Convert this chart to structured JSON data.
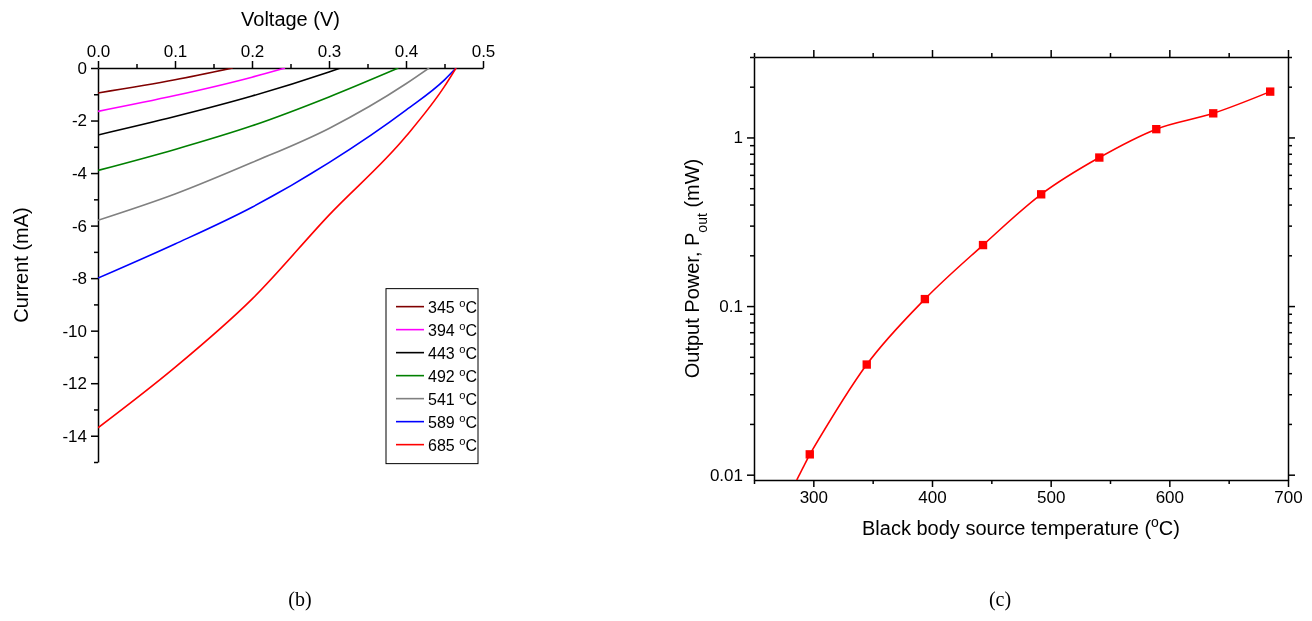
{
  "chart_data": [
    {
      "type": "line",
      "xlabel": "Voltage (V)",
      "ylabel": "Current (mA)",
      "annotations": [
        "(b)"
      ],
      "xlim": [
        0,
        0.5
      ],
      "xticks": [
        {
          "value": 0,
          "label": "0.0"
        },
        {
          "value": 0.05,
          "label": null
        },
        0.1,
        {
          "value": 0.15,
          "label": null
        },
        0.2,
        {
          "value": 0.25,
          "label": null
        },
        0.3,
        {
          "value": 0.35,
          "label": null
        },
        0.4,
        {
          "value": 0.45,
          "label": null
        },
        0.5
      ],
      "ylim": [
        -15,
        0
      ],
      "yticks": [
        0,
        {
          "value": -1,
          "label": null
        },
        -2,
        {
          "value": -3,
          "label": null
        },
        -4,
        {
          "value": -5,
          "label": null
        },
        -6,
        {
          "value": -7,
          "label": null
        },
        -8,
        {
          "value": -9,
          "label": null
        },
        -10,
        {
          "value": -11,
          "label": null
        },
        -12,
        {
          "value": -13,
          "label": null
        },
        -14,
        {
          "value": -15,
          "label": null
        }
      ],
      "legend": "right",
      "grid": false,
      "line_style": "solid",
      "series": [
        {
          "name": "345 $^{o}$C",
          "color": "#800000",
          "x": [
            0,
            0.1,
            0.175
          ],
          "values": [
            -0.95,
            -0.45,
            0
          ]
        },
        {
          "name": "394 $^{o}$C",
          "color": "#ff00ff",
          "x": [
            0,
            0.1,
            0.2,
            0.243
          ],
          "values": [
            -1.65,
            -1.05,
            -0.35,
            0
          ]
        },
        {
          "name": "443 $^{o}$C",
          "color": "#000000",
          "x": [
            0,
            0.1,
            0.2,
            0.3,
            0.315
          ],
          "values": [
            -2.55,
            -1.85,
            -1.07,
            -0.15,
            0
          ]
        },
        {
          "name": "492 $^{o}$C",
          "color": "#008000",
          "x": [
            0,
            0.1,
            0.2,
            0.3,
            0.39
          ],
          "values": [
            -3.9,
            -3.1,
            -2.2,
            -1.1,
            0
          ]
        },
        {
          "name": "541 $^{o}$C",
          "color": "#808080",
          "x": [
            0,
            0.1,
            0.2,
            0.3,
            0.4,
            0.43
          ],
          "values": [
            -5.8,
            -4.8,
            -3.6,
            -2.3,
            -0.6,
            0
          ]
        },
        {
          "name": "589 $^{o}$C",
          "color": "#0000ff",
          "x": [
            0,
            0.1,
            0.2,
            0.3,
            0.4,
            0.45,
            0.465
          ],
          "values": [
            -8.0,
            -6.7,
            -5.3,
            -3.6,
            -1.6,
            -0.45,
            0
          ]
        },
        {
          "name": "685 $^{o}$C",
          "color": "#ff0000",
          "x": [
            0,
            0.1,
            0.2,
            0.3,
            0.4,
            0.45,
            0.465
          ],
          "values": [
            -13.7,
            -11.4,
            -8.8,
            -5.6,
            -2.6,
            -0.7,
            0
          ]
        }
      ]
    },
    {
      "type": "line",
      "xlabel": "Black body source temperature ($^{o}$C)",
      "ylabel": "Output Power, P$_{out}$ (mW)",
      "annotations": [
        "(c)"
      ],
      "log": "y",
      "xlim": [
        250,
        700
      ],
      "xticks": [
        {
          "value": 250,
          "label": null
        },
        300,
        {
          "value": 350,
          "label": null
        },
        400,
        {
          "value": 450,
          "label": null
        },
        500,
        {
          "value": 550,
          "label": null
        },
        600,
        {
          "value": 650,
          "label": null
        },
        700
      ],
      "ylim": [
        0.0093,
        3
      ],
      "yticks": [
        0.01,
        {
          "value": 0.02,
          "label": null
        },
        {
          "value": 0.03,
          "label": null
        },
        {
          "value": 0.04,
          "label": null
        },
        {
          "value": 0.05,
          "label": null
        },
        {
          "value": 0.06,
          "label": null
        },
        {
          "value": 0.07,
          "label": null
        },
        {
          "value": 0.08,
          "label": null
        },
        {
          "value": 0.09,
          "label": null
        },
        0.1,
        {
          "value": 0.2,
          "label": null
        },
        {
          "value": 0.3,
          "label": null
        },
        {
          "value": 0.4,
          "label": null
        },
        {
          "value": 0.5,
          "label": null
        },
        {
          "value": 0.6,
          "label": null
        },
        {
          "value": 0.7,
          "label": null
        },
        {
          "value": 0.8,
          "label": null
        },
        {
          "value": 0.9,
          "label": null
        },
        1,
        {
          "value": 2,
          "label": null
        },
        {
          "value": 3,
          "label": null
        }
      ],
      "legend": false,
      "grid": false,
      "line_style": "solid",
      "series": [
        {
          "color": "#ff0000",
          "marker": "square",
          "x": [
            297,
            345,
            394,
            443,
            492,
            541,
            589,
            637,
            685
          ],
          "values": [
            0.0132,
            0.045,
            0.11,
            0.23,
            0.46,
            0.76,
            1.12,
            1.39,
            1.87
          ]
        },
        {
          "color": "#ff0000",
          "marker": "none",
          "x": [
            286,
            297
          ],
          "values": [
            0.0093,
            0.0132
          ]
        }
      ]
    }
  ]
}
